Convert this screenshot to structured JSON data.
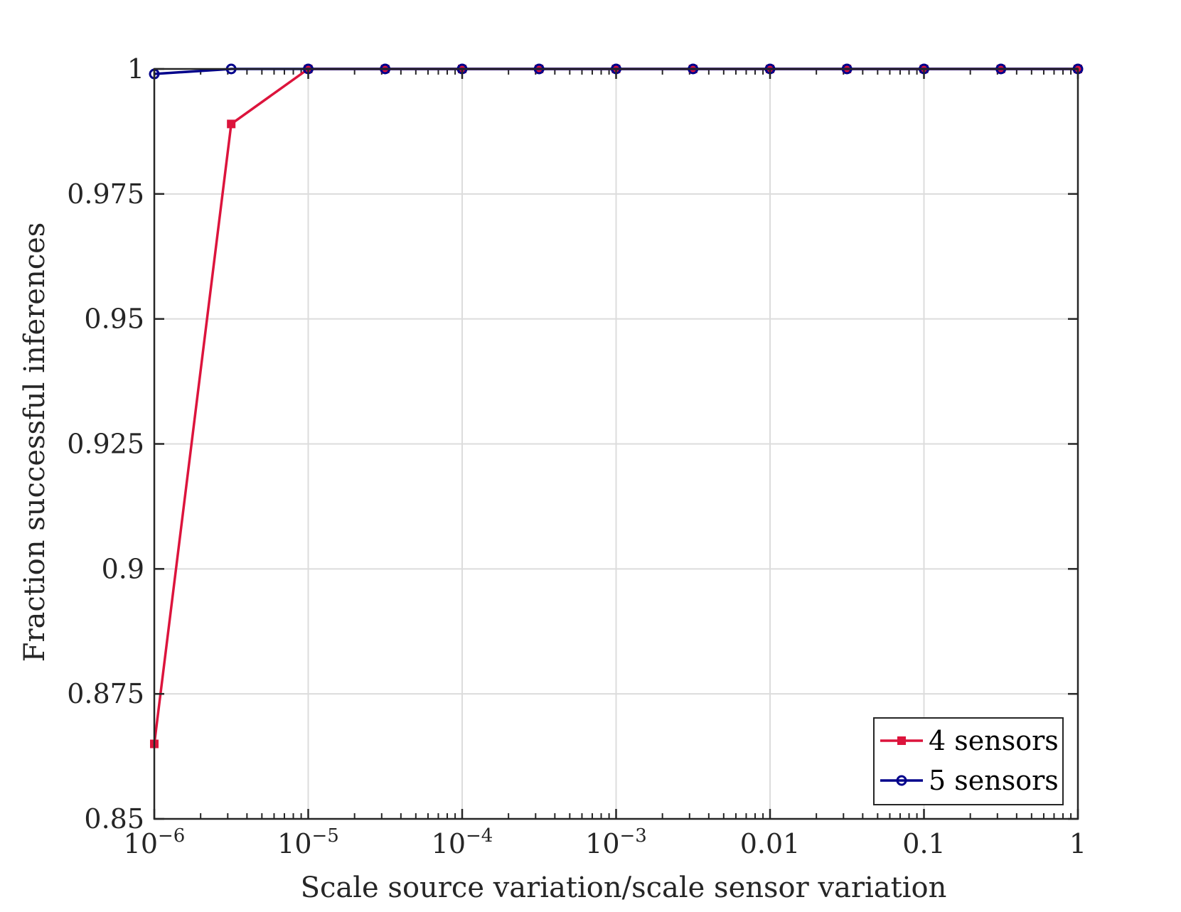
{
  "chart_data": {
    "type": "line",
    "xlabel": "Scale source variation/scale sensor variation",
    "ylabel": "Fraction successful inferences",
    "xscale": "log",
    "xlim": [
      1e-06,
      1
    ],
    "ylim": [
      0.85,
      1
    ],
    "grid": true,
    "legend_position": "bottom-right",
    "x": [
      1e-06,
      3.16e-06,
      1e-05,
      3.16e-05,
      0.0001,
      0.000316,
      0.001,
      0.00316,
      0.01,
      0.0316,
      0.1,
      0.316,
      1
    ],
    "x_ticks": [
      {
        "value": 1e-06,
        "base": "10",
        "exp": "−6"
      },
      {
        "value": 1e-05,
        "base": "10",
        "exp": "−5"
      },
      {
        "value": 0.0001,
        "base": "10",
        "exp": "−4"
      },
      {
        "value": 0.001,
        "base": "10",
        "exp": "−3"
      },
      {
        "value": 0.01,
        "base": "0.01",
        "exp": ""
      },
      {
        "value": 0.1,
        "base": "0.1",
        "exp": ""
      },
      {
        "value": 1,
        "base": "1",
        "exp": ""
      }
    ],
    "y_ticks": [
      {
        "value": 0.85,
        "label": "0.85"
      },
      {
        "value": 0.875,
        "label": "0.875"
      },
      {
        "value": 0.9,
        "label": "0.9"
      },
      {
        "value": 0.925,
        "label": "0.925"
      },
      {
        "value": 0.95,
        "label": "0.95"
      },
      {
        "value": 0.975,
        "label": "0.975"
      },
      {
        "value": 1,
        "label": "1"
      }
    ],
    "series": [
      {
        "name": "4 sensors",
        "color": "#dc143c",
        "marker": "square",
        "values": [
          0.865,
          0.989,
          1,
          1,
          1,
          1,
          1,
          1,
          1,
          1,
          1,
          1,
          1
        ]
      },
      {
        "name": "5 sensors",
        "color": "#00008b",
        "marker": "circle",
        "values": [
          0.999,
          1,
          1,
          1,
          1,
          1,
          1,
          1,
          1,
          1,
          1,
          1,
          1
        ]
      }
    ]
  }
}
